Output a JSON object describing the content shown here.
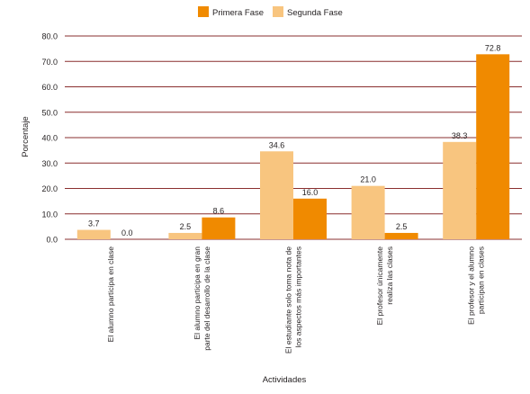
{
  "chart_data": {
    "type": "bar",
    "xlabel": "Actividades",
    "ylabel": "Porcentaje",
    "ylim": [
      0,
      80
    ],
    "yticks": [
      "0.0",
      "10.0",
      "20.0",
      "30.0",
      "40.0",
      "50.0",
      "60.0",
      "70.0",
      "80.0"
    ],
    "grid": true,
    "legend_position": "top",
    "categories": [
      [
        "El alumno participa en clase"
      ],
      [
        "El alumno participa en gran",
        "parte del desarrollo de la clase"
      ],
      [
        "El estudiante solo toma nota de",
        "los aspectos más importantes"
      ],
      [
        "El profesor únicamente",
        "realiza las clases"
      ],
      [
        "El profesor y el alumno",
        "participan en clases"
      ]
    ],
    "series": [
      {
        "name": "Segunda Fase",
        "color": "#f8c57f",
        "values": [
          3.7,
          2.5,
          34.6,
          21.0,
          38.3
        ],
        "labels": [
          "3.7",
          "2.5",
          "34.6",
          "21.0",
          "38.3"
        ]
      },
      {
        "name": "Primera Fase",
        "color": "#f08a00",
        "values": [
          0.0,
          8.6,
          16.0,
          2.5,
          72.8
        ],
        "labels": [
          "0.0",
          "8.6",
          "16.0",
          "2.5",
          "72.8"
        ]
      }
    ],
    "legend_order": [
      "Primera Fase",
      "Segunda Fase"
    ]
  }
}
